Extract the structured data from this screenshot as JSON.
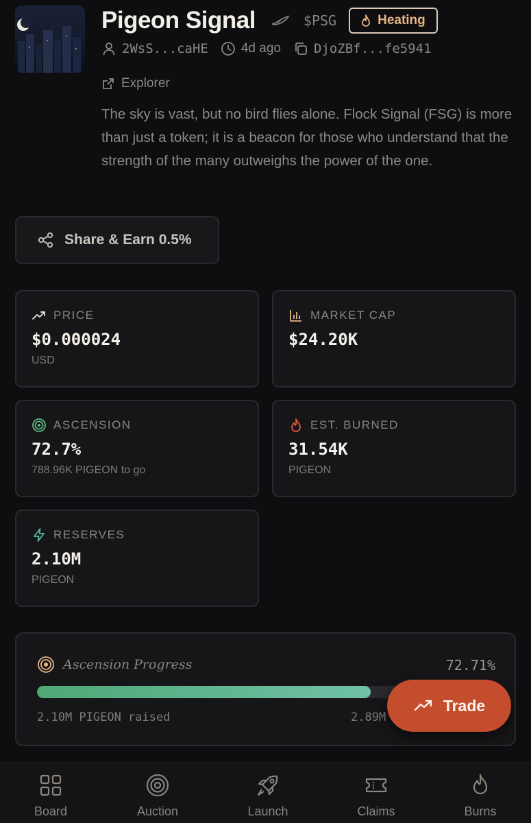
{
  "token": {
    "name": "Pigeon Signal",
    "ticker": "$PSG",
    "badge": "Heating",
    "creator": "2WsS...caHE",
    "age": "4d ago",
    "address": "DjoZBf...fe5941",
    "explorer_label": "Explorer",
    "description": "The sky is vast, but no bird flies alone. Flock Signal (FSG) is more than just a token; it is a beacon for those who understand that the strength of the many outweighs the power of the one."
  },
  "share": {
    "label": "Share & Earn 0.5%"
  },
  "stats": {
    "price": {
      "label": "PRICE",
      "value": "$0.000024",
      "sub": "USD"
    },
    "market_cap": {
      "label": "MARKET CAP",
      "value": "$24.20K",
      "sub": ""
    },
    "ascension": {
      "label": "ASCENSION",
      "value": "72.7%",
      "sub": "788.96K PIGEON to go"
    },
    "burned": {
      "label": "EST. BURNED",
      "value": "31.54K",
      "sub": "PIGEON"
    },
    "reserves": {
      "label": "RESERVES",
      "value": "2.10M",
      "sub": "PIGEON"
    }
  },
  "progress": {
    "title": "Ascension Progress",
    "percent_label": "72.71%",
    "fraction": 0.7271,
    "raised": "2.10M PIGEON raised",
    "target": "2.89M"
  },
  "trade": {
    "label": "Trade"
  },
  "nav": [
    {
      "label": "Board",
      "icon": "grid-icon"
    },
    {
      "label": "Auction",
      "icon": "target-icon"
    },
    {
      "label": "Launch",
      "icon": "rocket-icon"
    },
    {
      "label": "Claims",
      "icon": "ticket-icon"
    },
    {
      "label": "Burns",
      "icon": "flame-icon"
    }
  ],
  "colors": {
    "accent": "#c34d2c",
    "badge_text": "#e7b584",
    "progress_start": "#4fa776",
    "progress_end": "#6fc2a6",
    "background": "#0e0e10"
  }
}
